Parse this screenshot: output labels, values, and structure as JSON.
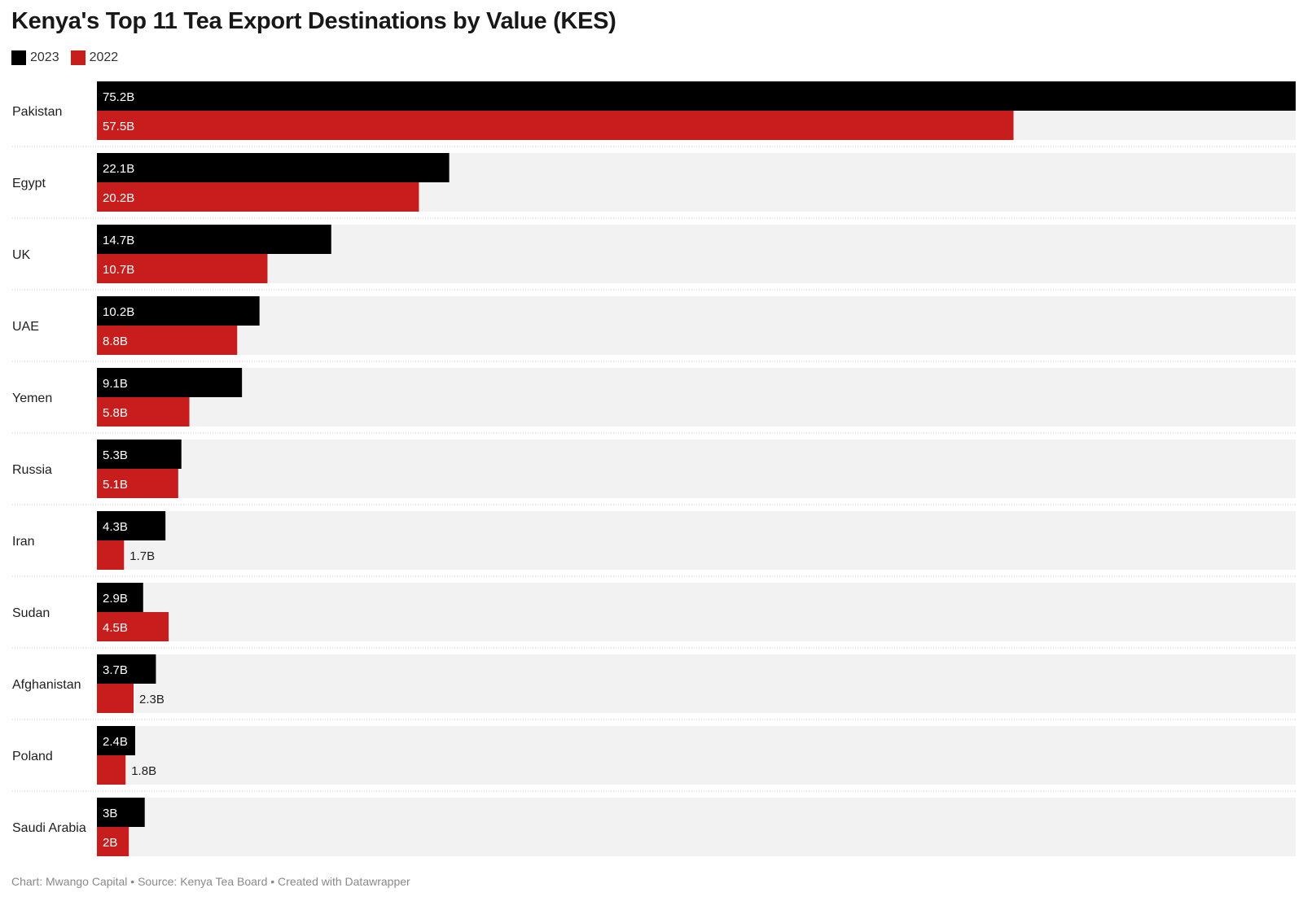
{
  "chart_data": {
    "type": "bar",
    "orientation": "horizontal",
    "title": "Kenya's Top 11 Tea Export Destinations by Value (KES)",
    "categories": [
      "Pakistan",
      "Egypt",
      "UK",
      "UAE",
      "Yemen",
      "Russia",
      "Iran",
      "Sudan",
      "Afghanistan",
      "Poland",
      "Saudi Arabia"
    ],
    "series": [
      {
        "name": "2023",
        "color": "#000000",
        "values": [
          75.2,
          22.1,
          14.7,
          10.2,
          9.1,
          5.3,
          4.3,
          2.9,
          3.7,
          2.4,
          3.0
        ],
        "labels": [
          "75.2B",
          "22.1B",
          "14.7B",
          "10.2B",
          "9.1B",
          "5.3B",
          "4.3B",
          "2.9B",
          "3.7B",
          "2.4B",
          "3B"
        ]
      },
      {
        "name": "2022",
        "color": "#c71e1d",
        "values": [
          57.5,
          20.2,
          10.7,
          8.8,
          5.8,
          5.1,
          1.7,
          4.5,
          2.3,
          1.8,
          2.0
        ],
        "labels": [
          "57.5B",
          "20.2B",
          "10.7B",
          "8.8B",
          "5.8B",
          "5.1B",
          "1.7B",
          "4.5B",
          "2.3B",
          "1.8B",
          "2B"
        ]
      }
    ],
    "xlim": [
      0,
      75.2
    ],
    "unit": "B",
    "legend_position": "top-left",
    "background_track_color": "#f2f2f2"
  },
  "footer": {
    "text": "Chart: Mwango Capital • Source: Kenya Tea Board • Created with Datawrapper"
  }
}
